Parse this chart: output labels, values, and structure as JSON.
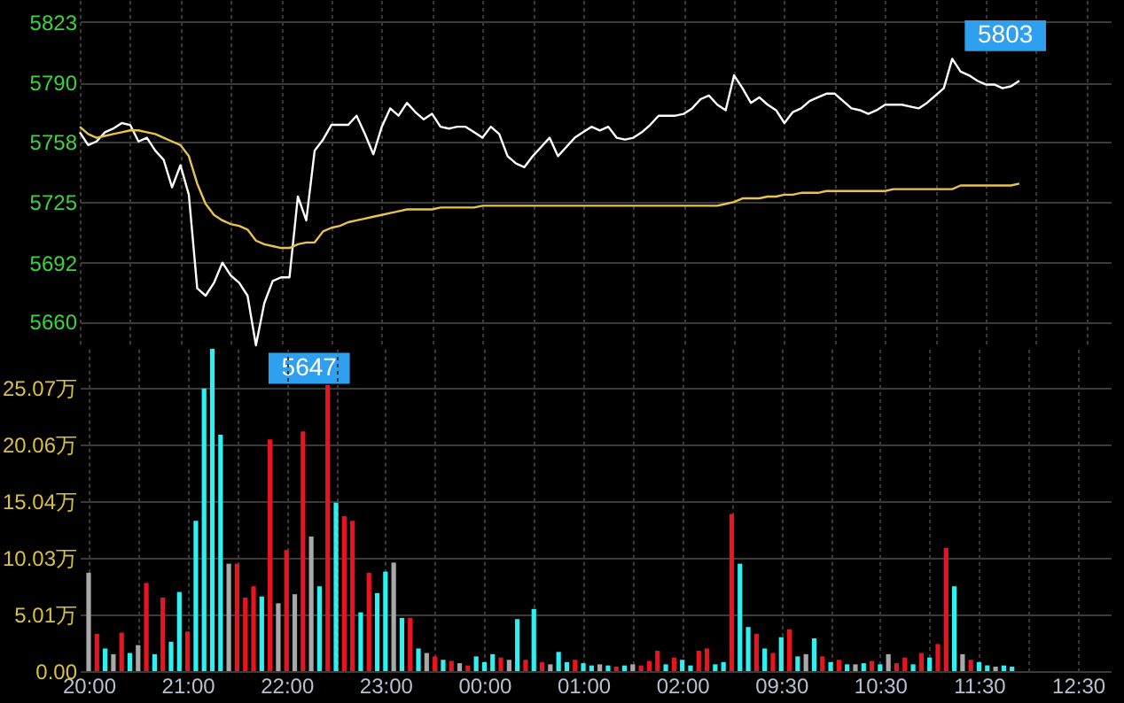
{
  "chart_data": [
    {
      "type": "line",
      "categories": [
        null,
        null,
        null,
        null,
        null,
        null,
        null,
        null,
        null,
        null,
        null,
        null,
        null,
        null,
        null,
        null,
        null,
        null,
        null,
        null,
        null,
        null,
        null,
        null,
        null,
        null,
        null,
        null,
        null,
        null,
        null,
        null,
        null,
        null,
        null,
        null,
        null,
        null,
        null,
        null,
        null,
        null,
        null,
        null,
        null,
        null,
        null,
        null,
        null,
        null,
        null,
        null,
        null,
        null,
        null,
        null,
        null,
        null,
        null,
        null,
        null,
        null,
        null,
        null,
        null,
        null,
        null,
        null,
        null,
        null,
        null,
        null,
        null,
        null,
        null,
        null,
        null,
        null,
        null,
        null,
        null,
        null,
        null,
        null,
        null,
        null,
        null,
        null,
        null,
        null,
        null,
        null,
        null,
        null,
        null,
        null,
        null,
        null,
        null,
        null,
        null,
        null,
        null,
        null,
        null,
        null,
        null,
        null,
        null,
        null,
        null,
        null,
        null,
        null,
        null,
        null,
        null,
        null,
        null,
        null,
        null,
        null,
        null,
        null
      ],
      "ylim": [
        5647,
        5835
      ],
      "yticks": [
        5660,
        5692,
        5725,
        5758,
        5790,
        5823
      ],
      "grid": true,
      "tick_labels": "y",
      "annotations": [
        "5803",
        "5647"
      ],
      "series": [
        {
          "color": "#ffffff",
          "values": [
            5763,
            5756,
            5758,
            5763,
            5765,
            5768,
            5767,
            5758,
            5760,
            5753,
            5748,
            5733,
            5745,
            5729,
            5678,
            5674,
            5681,
            5692,
            5685,
            5681,
            5674,
            5647,
            5670,
            5682,
            5684,
            5684,
            5728,
            5715,
            5753,
            5759,
            5767,
            5767,
            5767,
            5772,
            5762,
            5751,
            5766,
            5776,
            5772,
            5779,
            5774,
            5770,
            5773,
            5766,
            5765,
            5766,
            5766,
            5763,
            5760,
            5766,
            5762,
            5750,
            5746,
            5744,
            5750,
            5755,
            5760,
            5750,
            5755,
            5760,
            5763,
            5766,
            5764,
            5766,
            5760,
            5759,
            5760,
            5763,
            5767,
            5772,
            5772,
            5772,
            5773,
            5776,
            5781,
            5783,
            5778,
            5775,
            5794,
            5787,
            5779,
            5782,
            5778,
            5775,
            5768,
            5774,
            5776,
            5780,
            5782,
            5784,
            5784,
            5780,
            5776,
            5775,
            5773,
            5775,
            5778,
            5778,
            5778,
            5777,
            5776,
            5779,
            5783,
            5787,
            5803,
            5796,
            5794,
            5791,
            5789,
            5789,
            5787,
            5788,
            5791,
            null,
            null,
            null,
            null,
            null,
            null,
            null,
            null,
            null,
            null,
            null
          ]
        },
        {
          "color": "#e8c44a",
          "values": [
            5766,
            5762,
            5760,
            5761,
            5762,
            5763,
            5764,
            5764,
            5763,
            5762,
            5760,
            5758,
            5756,
            5750,
            5735,
            5724,
            5718,
            5715,
            5713,
            5712,
            5710,
            5704,
            5702,
            5701,
            5700,
            5700,
            5702,
            5703,
            5703,
            5709,
            5711,
            5712,
            5714,
            5715,
            5716,
            5717,
            5718,
            5719,
            5720,
            5721,
            5721,
            5721,
            5721,
            5722,
            5722,
            5722,
            5722,
            5722,
            5723,
            5723,
            5723,
            5723,
            5723,
            5723,
            5723,
            5723,
            5723,
            5723,
            5723,
            5723,
            5723,
            5723,
            5723,
            5723,
            5723,
            5723,
            5723,
            5723,
            5723,
            5723,
            5723,
            5723,
            5723,
            5723,
            5723,
            5723,
            5723,
            5724,
            5725,
            5727,
            5727,
            5727,
            5728,
            5728,
            5729,
            5729,
            5730,
            5730,
            5730,
            5731,
            5731,
            5731,
            5731,
            5731,
            5731,
            5731,
            5731,
            5732,
            5732,
            5732,
            5732,
            5732,
            5732,
            5732,
            5732,
            5734,
            5734,
            5734,
            5734,
            5734,
            5734,
            5734,
            5735,
            null,
            null,
            null,
            null,
            null,
            null,
            null,
            null,
            null,
            null,
            null
          ]
        }
      ]
    },
    {
      "type": "bar",
      "categories": [
        "20:00",
        null,
        null,
        null,
        null,
        null,
        null,
        null,
        null,
        null,
        null,
        null,
        "21:00",
        null,
        null,
        null,
        null,
        null,
        null,
        null,
        null,
        null,
        null,
        null,
        "22:00",
        null,
        null,
        null,
        null,
        null,
        null,
        null,
        null,
        null,
        null,
        null,
        "23:00",
        null,
        null,
        null,
        null,
        null,
        null,
        null,
        null,
        null,
        null,
        null,
        "00:00",
        null,
        null,
        null,
        null,
        null,
        null,
        null,
        null,
        null,
        null,
        null,
        "01:00",
        null,
        null,
        null,
        null,
        null,
        null,
        null,
        null,
        null,
        null,
        null,
        "02:00",
        null,
        null,
        null,
        null,
        null,
        null,
        null,
        null,
        null,
        null,
        null,
        "09:30",
        null,
        null,
        null,
        null,
        null,
        null,
        null,
        null,
        null,
        null,
        null,
        "10:30",
        null,
        null,
        null,
        null,
        null,
        null,
        null,
        null,
        null,
        null,
        null,
        "11:30",
        null,
        null,
        null,
        null,
        null,
        null,
        null,
        null,
        null,
        null,
        null,
        "12:30",
        null,
        null,
        null
      ],
      "ylim": [
        0,
        28.5
      ],
      "yticks": [
        {
          "value": 0,
          "label": "0.00"
        },
        {
          "value": 5.01,
          "label": "5.01万"
        },
        {
          "value": 10.03,
          "label": "10.03万"
        },
        {
          "value": 15.04,
          "label": "15.04万"
        },
        {
          "value": 20.06,
          "label": "20.06万"
        },
        {
          "value": 25.07,
          "label": "25.07万"
        }
      ],
      "grid": true,
      "values": [
        8.7,
        3.3,
        2.0,
        1.5,
        3.4,
        1.6,
        2.3,
        7.8,
        1.5,
        6.5,
        2.6,
        7.0,
        3.5,
        13.3,
        25.0,
        28.5,
        20.9,
        9.5,
        9.5,
        6.5,
        7.5,
        6.6,
        20.5,
        6.0,
        10.7,
        6.8,
        21.2,
        11.9,
        7.5,
        25.3,
        14.9,
        13.7,
        13.3,
        5.2,
        8.7,
        6.9,
        8.8,
        9.6,
        4.7,
        4.7,
        2.0,
        1.6,
        1.3,
        1.0,
        0.9,
        0.7,
        0.5,
        1.3,
        0.8,
        1.5,
        1.2,
        1.0,
        4.6,
        1.0,
        5.5,
        0.8,
        0.6,
        1.7,
        0.8,
        1.0,
        0.7,
        0.5,
        0.6,
        0.5,
        0.4,
        0.5,
        0.6,
        0.5,
        0.9,
        1.8,
        0.6,
        1.2,
        1.0,
        0.5,
        1.8,
        2.0,
        0.6,
        0.8,
        13.9,
        9.5,
        3.9,
        3.3,
        2.0,
        1.6,
        3.0,
        3.7,
        1.3,
        1.5,
        2.9,
        1.3,
        0.8,
        1.0,
        0.6,
        0.6,
        0.7,
        0.9,
        0.6,
        1.5,
        0.7,
        1.2,
        0.6,
        1.6,
        1.2,
        2.4,
        10.9,
        7.5,
        1.5,
        1.0,
        0.8,
        0.5,
        0.4,
        0.5,
        0.4,
        null,
        null,
        null,
        null,
        null,
        null,
        null,
        null,
        null,
        null,
        null
      ],
      "colors": [
        "#a8a8a8",
        "#e8141e",
        "#2ef0f0",
        "#a8a8a8",
        "#e8141e",
        "#2ef0f0",
        "#a8a8a8",
        "#e8141e",
        "#2ef0f0",
        "#e8141e",
        "#2ef0f0",
        "#2ef0f0",
        "#e8141e",
        "#2ef0f0",
        "#2ef0f0",
        "#2ef0f0",
        "#2ef0f0",
        "#a8a8a8",
        "#e8141e",
        "#e8141e",
        "#e8141e",
        "#2ef0f0",
        "#e8141e",
        "#a8a8a8",
        "#e8141e",
        "#a8a8a8",
        "#e8141e",
        "#a8a8a8",
        "#2ef0f0",
        "#e8141e",
        "#2ef0f0",
        "#e8141e",
        "#e8141e",
        "#2ef0f0",
        "#e8141e",
        "#2ef0f0",
        "#2ef0f0",
        "#a8a8a8",
        "#2ef0f0",
        "#e8141e",
        "#2ef0f0",
        "#a8a8a8",
        "#e8141e",
        "#2ef0f0",
        "#e8141e",
        "#a8a8a8",
        "#e8141e",
        "#2ef0f0",
        "#2ef0f0",
        "#2ef0f0",
        "#e8141e",
        "#a8a8a8",
        "#2ef0f0",
        "#e8141e",
        "#2ef0f0",
        "#e8141e",
        "#a8a8a8",
        "#2ef0f0",
        "#2ef0f0",
        "#e8141e",
        "#2ef0f0",
        "#2ef0f0",
        "#a8a8a8",
        "#2ef0f0",
        "#e8141e",
        "#2ef0f0",
        "#a8a8a8",
        "#e8141e",
        "#e8141e",
        "#e8141e",
        "#2ef0f0",
        "#e8141e",
        "#2ef0f0",
        "#2ef0f0",
        "#e8141e",
        "#e8141e",
        "#2ef0f0",
        "#2ef0f0",
        "#e8141e",
        "#2ef0f0",
        "#2ef0f0",
        "#e8141e",
        "#2ef0f0",
        "#e8141e",
        "#2ef0f0",
        "#e8141e",
        "#2ef0f0",
        "#a8a8a8",
        "#2ef0f0",
        "#e8141e",
        "#2ef0f0",
        "#e8141e",
        "#2ef0f0",
        "#a8a8a8",
        "#2ef0f0",
        "#e8141e",
        "#2ef0f0",
        "#a8a8a8",
        "#e8141e",
        "#e8141e",
        "#2ef0f0",
        "#e8141e",
        "#2ef0f0",
        "#e8141e",
        "#e8141e",
        "#2ef0f0",
        "#a8a8a8",
        "#e8141e",
        "#2ef0f0",
        "#2ef0f0",
        "#a8a8a8",
        "#2ef0f0",
        "#2ef0f0",
        null,
        null,
        null,
        null,
        null,
        null,
        null,
        null,
        null,
        null,
        null
      ]
    }
  ]
}
